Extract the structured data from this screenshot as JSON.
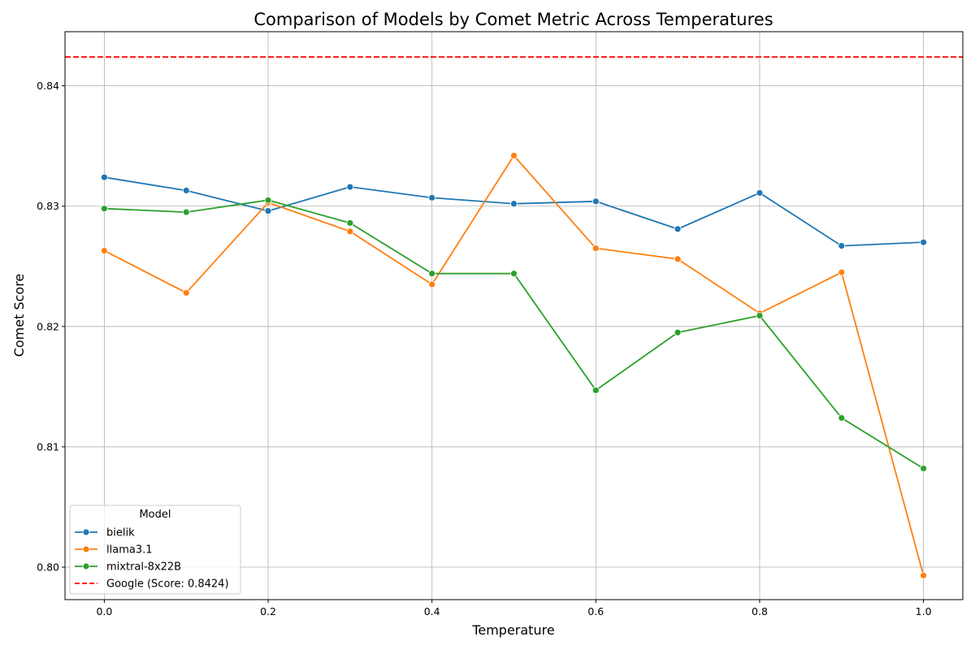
{
  "chart_data": {
    "type": "line",
    "title": "Comparison of Models by Comet Metric Across Temperatures",
    "xlabel": "Temperature",
    "ylabel": "Comet Score",
    "xlim": [
      -0.048,
      1.048
    ],
    "ylim": [
      0.7973,
      0.8445
    ],
    "x_ticks": [
      0.0,
      0.2,
      0.4,
      0.6,
      0.8,
      1.0
    ],
    "x_tick_labels": [
      "0.0",
      "0.2",
      "0.4",
      "0.6",
      "0.8",
      "1.0"
    ],
    "y_ticks": [
      0.8,
      0.81,
      0.82,
      0.83,
      0.84
    ],
    "y_tick_labels": [
      "0.80",
      "0.81",
      "0.82",
      "0.83",
      "0.84"
    ],
    "grid": true,
    "legend": {
      "title": "Model",
      "placement": "lower-left"
    },
    "x": [
      0.0,
      0.1,
      0.2,
      0.3,
      0.4,
      0.5,
      0.6,
      0.7,
      0.8,
      0.9,
      1.0
    ],
    "series": [
      {
        "name": "bielik",
        "color": "#1f77b4",
        "values": [
          0.8324,
          0.8313,
          0.8296,
          0.8316,
          0.8307,
          0.8302,
          0.8304,
          0.8281,
          0.8311,
          0.8267,
          0.827
        ]
      },
      {
        "name": "llama3.1",
        "color": "#ff7f0e",
        "values": [
          0.8263,
          0.8228,
          0.8303,
          0.8279,
          0.8235,
          0.8342,
          0.8265,
          0.8256,
          0.8211,
          0.8245,
          0.7993
        ]
      },
      {
        "name": "mixtral-8x22B",
        "color": "#2ca02c",
        "values": [
          0.8298,
          0.8295,
          0.8305,
          0.8286,
          0.8244,
          0.8244,
          0.8147,
          0.8195,
          0.8209,
          0.8124,
          0.8082
        ]
      }
    ],
    "reference_line": {
      "label": "Google (Score: 0.8424)",
      "value": 0.8424,
      "color": "#ff0000",
      "style": "dashed"
    }
  }
}
